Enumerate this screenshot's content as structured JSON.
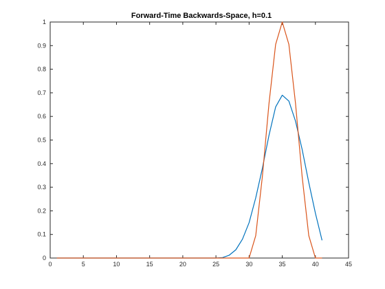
{
  "chart_data": {
    "type": "line",
    "title": "Forward-Time Backwards-Space, h=0.1",
    "xlabel": "",
    "ylabel": "",
    "xlim": [
      0,
      45
    ],
    "ylim": [
      0,
      1
    ],
    "xticks": [
      0,
      5,
      10,
      15,
      20,
      25,
      30,
      35,
      40,
      45
    ],
    "yticks": [
      0,
      0.1,
      0.2,
      0.3,
      0.4,
      0.5,
      0.6,
      0.7,
      0.8,
      0.9,
      1
    ],
    "xtick_labels": [
      "0",
      "5",
      "10",
      "15",
      "20",
      "25",
      "30",
      "35",
      "40",
      "45"
    ],
    "ytick_labels": [
      "0",
      "0.1",
      "0.2",
      "0.3",
      "0.4",
      "0.5",
      "0.6",
      "0.7",
      "0.8",
      "0.9",
      "1"
    ],
    "grid": false,
    "legend": "none",
    "series": [
      {
        "color": "#0072BD",
        "x": [
          1,
          2,
          3,
          4,
          5,
          6,
          7,
          8,
          9,
          10,
          11,
          12,
          13,
          14,
          15,
          16,
          17,
          18,
          19,
          20,
          21,
          22,
          23,
          24,
          25,
          26,
          27,
          28,
          29,
          30,
          31,
          32,
          33,
          34,
          35,
          36,
          37,
          38,
          39,
          40,
          41
        ],
        "y": [
          0,
          0,
          0,
          0,
          0,
          0,
          0,
          0,
          0,
          0,
          0,
          0,
          0,
          0,
          0,
          0,
          0,
          0,
          0,
          0,
          0,
          0,
          0,
          0,
          0,
          0.002,
          0.012,
          0.035,
          0.08,
          0.15,
          0.255,
          0.38,
          0.52,
          0.64,
          0.69,
          0.665,
          0.58,
          0.46,
          0.32,
          0.19,
          0.075
        ]
      },
      {
        "color": "#D95319",
        "x": [
          1,
          2,
          3,
          4,
          5,
          6,
          7,
          8,
          9,
          10,
          11,
          12,
          13,
          14,
          15,
          16,
          17,
          18,
          19,
          20,
          21,
          22,
          23,
          24,
          25,
          26,
          27,
          28,
          29,
          30,
          31,
          32,
          33,
          34,
          35,
          36,
          37,
          38,
          39,
          40,
          41
        ],
        "y": [
          0,
          0,
          0,
          0,
          0,
          0,
          0,
          0,
          0,
          0,
          0,
          0,
          0,
          0,
          0,
          0,
          0,
          0,
          0,
          0,
          0,
          0,
          0,
          0,
          0,
          0,
          0,
          0,
          0,
          0,
          0.095,
          0.345,
          0.655,
          0.905,
          1,
          0.905,
          0.655,
          0.345,
          0.095,
          0,
          0
        ]
      }
    ]
  }
}
